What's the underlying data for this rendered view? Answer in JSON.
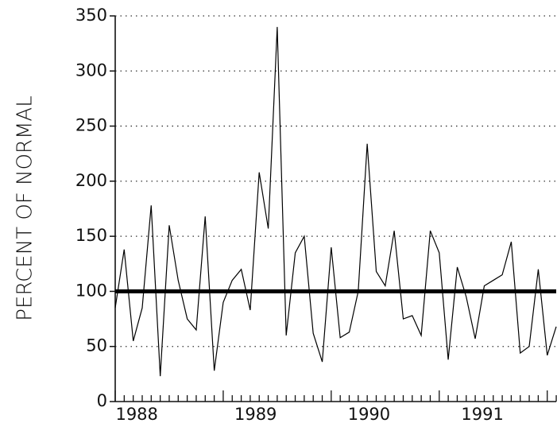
{
  "chart_data": {
    "type": "line",
    "y_label": "PERCENT OF NORMAL",
    "x": [
      1988.0,
      1988.083,
      1988.167,
      1988.25,
      1988.333,
      1988.417,
      1988.5,
      1988.583,
      1988.667,
      1988.75,
      1988.833,
      1988.917,
      1989.0,
      1989.083,
      1989.167,
      1989.25,
      1989.333,
      1989.417,
      1989.5,
      1989.583,
      1989.667,
      1989.75,
      1989.833,
      1989.917,
      1990.0,
      1990.083,
      1990.167,
      1990.25,
      1990.333,
      1990.417,
      1990.5,
      1990.583,
      1990.667,
      1990.75,
      1990.833,
      1990.917,
      1991.0,
      1991.083,
      1991.167,
      1991.25,
      1991.333,
      1991.417,
      1991.5,
      1991.583,
      1991.667,
      1991.75,
      1991.833,
      1991.917,
      1992.0,
      1992.083
    ],
    "values": [
      85,
      138,
      55,
      85,
      178,
      23,
      160,
      110,
      75,
      65,
      168,
      28,
      90,
      110,
      120,
      83,
      208,
      157,
      340,
      60,
      135,
      150,
      62,
      36,
      140,
      58,
      63,
      100,
      234,
      118,
      105,
      155,
      75,
      78,
      60,
      155,
      135,
      38,
      122,
      95,
      57,
      105,
      110,
      115,
      145,
      44,
      50,
      120,
      42,
      68
    ],
    "color": "#000000",
    "reference_line": 100,
    "xlim": [
      1988,
      1992.083
    ],
    "xticks": [
      {
        "value": 1988.2,
        "label": "1988"
      },
      {
        "value": 1989.3,
        "label": "1989"
      },
      {
        "value": 1990.35,
        "label": "1990"
      },
      {
        "value": 1991.4,
        "label": "1991"
      }
    ],
    "ylim": [
      0,
      350
    ],
    "yticks": [
      0,
      50,
      100,
      150,
      200,
      250,
      300,
      350
    ],
    "grid": true
  }
}
